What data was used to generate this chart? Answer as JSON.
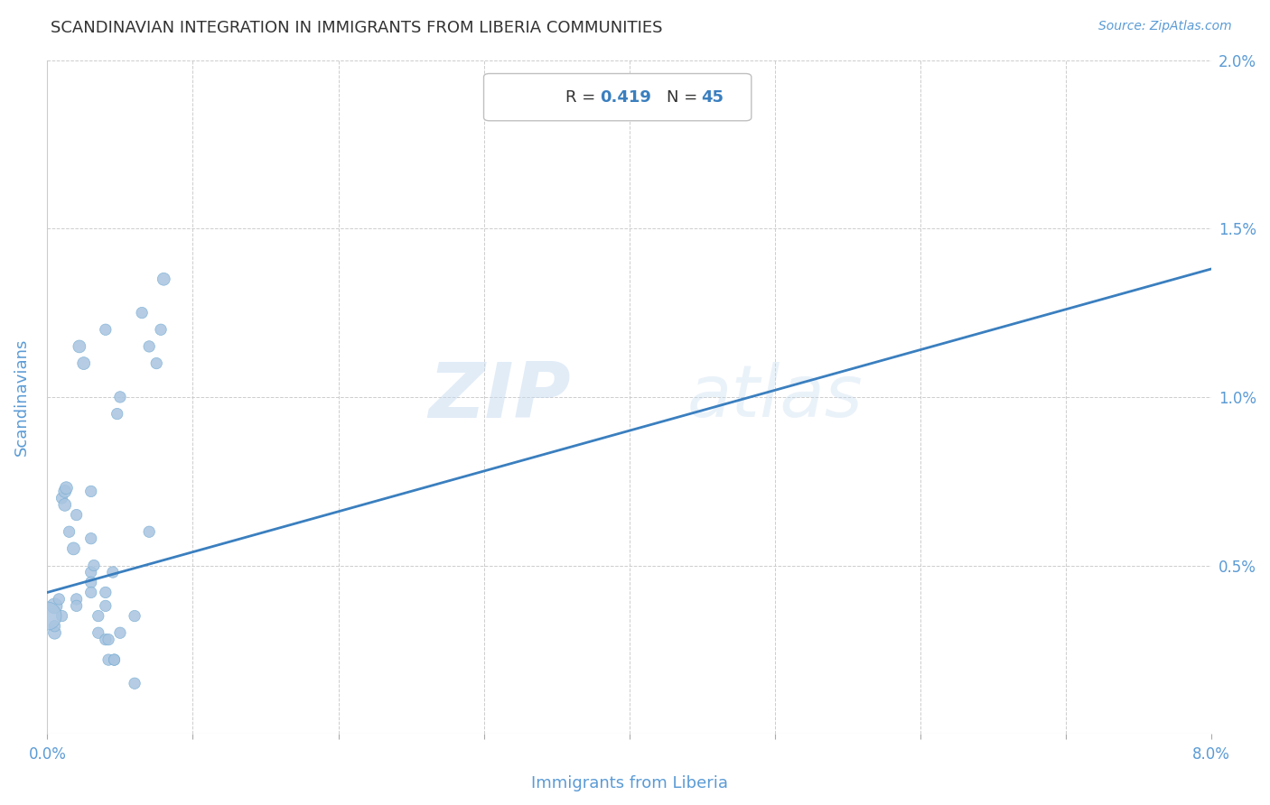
{
  "title": "SCANDINAVIAN INTEGRATION IN IMMIGRANTS FROM LIBERIA COMMUNITIES",
  "source": "Source: ZipAtlas.com",
  "xlabel": "Immigrants from Liberia",
  "ylabel": "Scandinavians",
  "R": 0.419,
  "N": 45,
  "xlim": [
    0.0,
    0.08
  ],
  "ylim": [
    0.0,
    0.02
  ],
  "x_ticks": [
    0.0,
    0.01,
    0.02,
    0.03,
    0.04,
    0.05,
    0.06,
    0.07,
    0.08
  ],
  "x_tick_labels_left": "0.0%",
  "x_tick_labels_right": "8.0%",
  "y_ticks": [
    0.0,
    0.005,
    0.01,
    0.015,
    0.02
  ],
  "y_tick_labels": [
    "",
    "0.5%",
    "1.0%",
    "1.5%",
    "2.0%"
  ],
  "watermark_zip": "ZIP",
  "watermark_atlas": "atlas",
  "scatter_color": "#a8c4e0",
  "scatter_edge_color": "#7aafd4",
  "line_color": "#3a7fbf",
  "title_color": "#333333",
  "axis_color": "#5b9bd5",
  "grid_color": "#c8c8c8",
  "R_label_color": "#333333",
  "N_label_color": "#3a7fbf",
  "points": [
    [
      0.0005,
      0.0038
    ],
    [
      0.0005,
      0.003
    ],
    [
      0.0005,
      0.0032
    ],
    [
      0.0008,
      0.004
    ],
    [
      0.001,
      0.0035
    ],
    [
      0.001,
      0.007
    ],
    [
      0.0012,
      0.0068
    ],
    [
      0.0012,
      0.0072
    ],
    [
      0.0013,
      0.0073
    ],
    [
      0.0015,
      0.006
    ],
    [
      0.0018,
      0.0055
    ],
    [
      0.002,
      0.004
    ],
    [
      0.002,
      0.0038
    ],
    [
      0.002,
      0.0065
    ],
    [
      0.0022,
      0.0115
    ],
    [
      0.0025,
      0.011
    ],
    [
      0.003,
      0.0058
    ],
    [
      0.003,
      0.0048
    ],
    [
      0.003,
      0.0072
    ],
    [
      0.003,
      0.0045
    ],
    [
      0.003,
      0.0042
    ],
    [
      0.0032,
      0.005
    ],
    [
      0.0035,
      0.0035
    ],
    [
      0.0035,
      0.003
    ],
    [
      0.004,
      0.0042
    ],
    [
      0.004,
      0.0038
    ],
    [
      0.004,
      0.0028
    ],
    [
      0.0042,
      0.0028
    ],
    [
      0.0042,
      0.0022
    ],
    [
      0.004,
      0.012
    ],
    [
      0.0045,
      0.0048
    ],
    [
      0.0046,
      0.0022
    ],
    [
      0.0046,
      0.0022
    ],
    [
      0.0048,
      0.0095
    ],
    [
      0.005,
      0.01
    ],
    [
      0.005,
      0.003
    ],
    [
      0.006,
      0.0035
    ],
    [
      0.006,
      0.0015
    ],
    [
      0.0065,
      0.0125
    ],
    [
      0.007,
      0.006
    ],
    [
      0.007,
      0.0115
    ],
    [
      0.0075,
      0.011
    ],
    [
      0.0078,
      0.012
    ],
    [
      0.008,
      0.0135
    ],
    [
      0.0,
      0.0035
    ]
  ],
  "point_sizes": [
    150,
    100,
    80,
    80,
    80,
    80,
    100,
    100,
    100,
    80,
    100,
    80,
    80,
    80,
    100,
    100,
    80,
    80,
    80,
    80,
    80,
    80,
    80,
    80,
    80,
    80,
    80,
    80,
    80,
    80,
    80,
    80,
    80,
    80,
    80,
    80,
    80,
    80,
    80,
    80,
    80,
    80,
    80,
    100,
    500
  ],
  "regression_y_intercept": 0.0042,
  "regression_slope": 0.12
}
